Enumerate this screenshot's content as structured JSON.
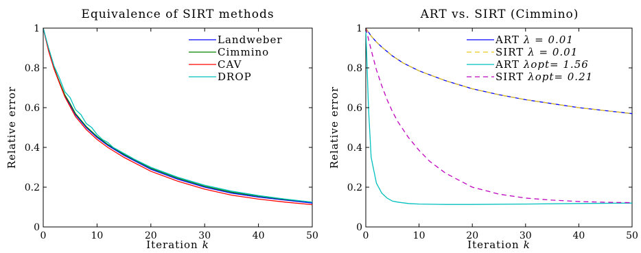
{
  "chart_data": [
    {
      "type": "line",
      "title": "Equivalence of SIRT methods",
      "xlabel": "Iteration",
      "xlabel_var": "k",
      "ylabel": "Relative error",
      "xlim": [
        0,
        50
      ],
      "ylim": [
        0,
        1
      ],
      "xticks": [
        "0",
        "10",
        "20",
        "30",
        "40",
        "50"
      ],
      "yticks": [
        "0",
        "0.2",
        "0.4",
        "0.6",
        "0.8",
        "1"
      ],
      "legend_position": "top-right",
      "series": [
        {
          "name": "Landweber",
          "color": "#0000ff",
          "dash": "solid",
          "x": [
            0,
            1,
            2,
            3,
            4,
            5,
            6,
            8,
            10,
            12,
            15,
            20,
            25,
            30,
            35,
            40,
            45,
            50
          ],
          "y": [
            1.0,
            0.89,
            0.8,
            0.73,
            0.66,
            0.615,
            0.565,
            0.5,
            0.45,
            0.41,
            0.36,
            0.29,
            0.24,
            0.2,
            0.17,
            0.15,
            0.135,
            0.12
          ]
        },
        {
          "name": "Cimmino",
          "color": "#008000",
          "dash": "solid",
          "x": [
            0,
            1,
            2,
            3,
            4,
            5,
            6,
            8,
            10,
            12,
            15,
            20,
            25,
            30,
            35,
            40,
            45,
            50
          ],
          "y": [
            1.0,
            0.89,
            0.8,
            0.73,
            0.665,
            0.62,
            0.57,
            0.505,
            0.455,
            0.415,
            0.365,
            0.295,
            0.245,
            0.205,
            0.175,
            0.155,
            0.138,
            0.125
          ]
        },
        {
          "name": "CAV",
          "color": "#ff0000",
          "dash": "solid",
          "x": [
            0,
            1,
            2,
            3,
            4,
            5,
            6,
            8,
            10,
            12,
            15,
            20,
            25,
            30,
            35,
            40,
            45,
            50
          ],
          "y": [
            1.0,
            0.885,
            0.795,
            0.725,
            0.655,
            0.605,
            0.555,
            0.49,
            0.44,
            0.4,
            0.35,
            0.28,
            0.23,
            0.19,
            0.16,
            0.14,
            0.125,
            0.112
          ]
        },
        {
          "name": "DROP",
          "color": "#00bfbf",
          "dash": "solid",
          "x": [
            0,
            1,
            2,
            3,
            4,
            5,
            6,
            7,
            8,
            9,
            10,
            11,
            12,
            13,
            14,
            15,
            17,
            20,
            25,
            30,
            35,
            40,
            45,
            50
          ],
          "y": [
            1.0,
            0.9,
            0.81,
            0.75,
            0.68,
            0.65,
            0.59,
            0.565,
            0.52,
            0.5,
            0.465,
            0.44,
            0.425,
            0.4,
            0.385,
            0.37,
            0.34,
            0.3,
            0.25,
            0.21,
            0.18,
            0.158,
            0.14,
            0.125
          ]
        }
      ]
    },
    {
      "type": "line",
      "title": "ART vs. SIRT (Cimmino)",
      "xlabel": "Iteration",
      "xlabel_var": "k",
      "ylabel": "Relative error",
      "xlim": [
        0,
        50
      ],
      "ylim": [
        0,
        1
      ],
      "xticks": [
        "0",
        "10",
        "20",
        "30",
        "40",
        "50"
      ],
      "yticks": [
        "0",
        "0.2",
        "0.4",
        "0.6",
        "0.8",
        "1"
      ],
      "legend_position": "top-right",
      "series": [
        {
          "name": "ART",
          "lambda_label": "λ = 0.01",
          "color": "#0000ff",
          "dash": "solid",
          "x": [
            0,
            1,
            2,
            3,
            5,
            7,
            10,
            15,
            20,
            25,
            30,
            35,
            40,
            45,
            50
          ],
          "y": [
            1.0,
            0.96,
            0.93,
            0.905,
            0.86,
            0.825,
            0.785,
            0.735,
            0.695,
            0.665,
            0.64,
            0.62,
            0.6,
            0.585,
            0.57
          ]
        },
        {
          "name": "SIRT",
          "lambda_label": "λ = 0.01",
          "color": "#e6c619",
          "dash": "dashed",
          "x": [
            0,
            1,
            2,
            3,
            5,
            7,
            10,
            15,
            20,
            25,
            30,
            35,
            40,
            45,
            50
          ],
          "y": [
            1.0,
            0.96,
            0.93,
            0.905,
            0.86,
            0.825,
            0.785,
            0.735,
            0.695,
            0.665,
            0.64,
            0.62,
            0.6,
            0.585,
            0.57
          ]
        },
        {
          "name": "ART",
          "lambda_label": "λopt= 1.56",
          "color": "#00bfbf",
          "dash": "solid",
          "x": [
            0,
            0.5,
            1,
            2,
            3,
            4,
            5,
            6,
            8,
            10,
            15,
            20,
            30,
            40,
            50
          ],
          "y": [
            1.0,
            0.6,
            0.35,
            0.22,
            0.17,
            0.145,
            0.13,
            0.125,
            0.118,
            0.115,
            0.113,
            0.113,
            0.115,
            0.118,
            0.12
          ]
        },
        {
          "name": "SIRT",
          "lambda_label": "λopt= 0.21",
          "color": "#bf00bf",
          "dash": "dashed",
          "x": [
            0,
            1,
            2,
            3,
            4,
            5,
            6,
            8,
            10,
            12,
            15,
            20,
            25,
            30,
            35,
            40,
            45,
            50
          ],
          "y": [
            1.0,
            0.89,
            0.79,
            0.71,
            0.64,
            0.58,
            0.53,
            0.45,
            0.385,
            0.33,
            0.27,
            0.2,
            0.165,
            0.145,
            0.135,
            0.128,
            0.124,
            0.122
          ]
        }
      ]
    }
  ]
}
